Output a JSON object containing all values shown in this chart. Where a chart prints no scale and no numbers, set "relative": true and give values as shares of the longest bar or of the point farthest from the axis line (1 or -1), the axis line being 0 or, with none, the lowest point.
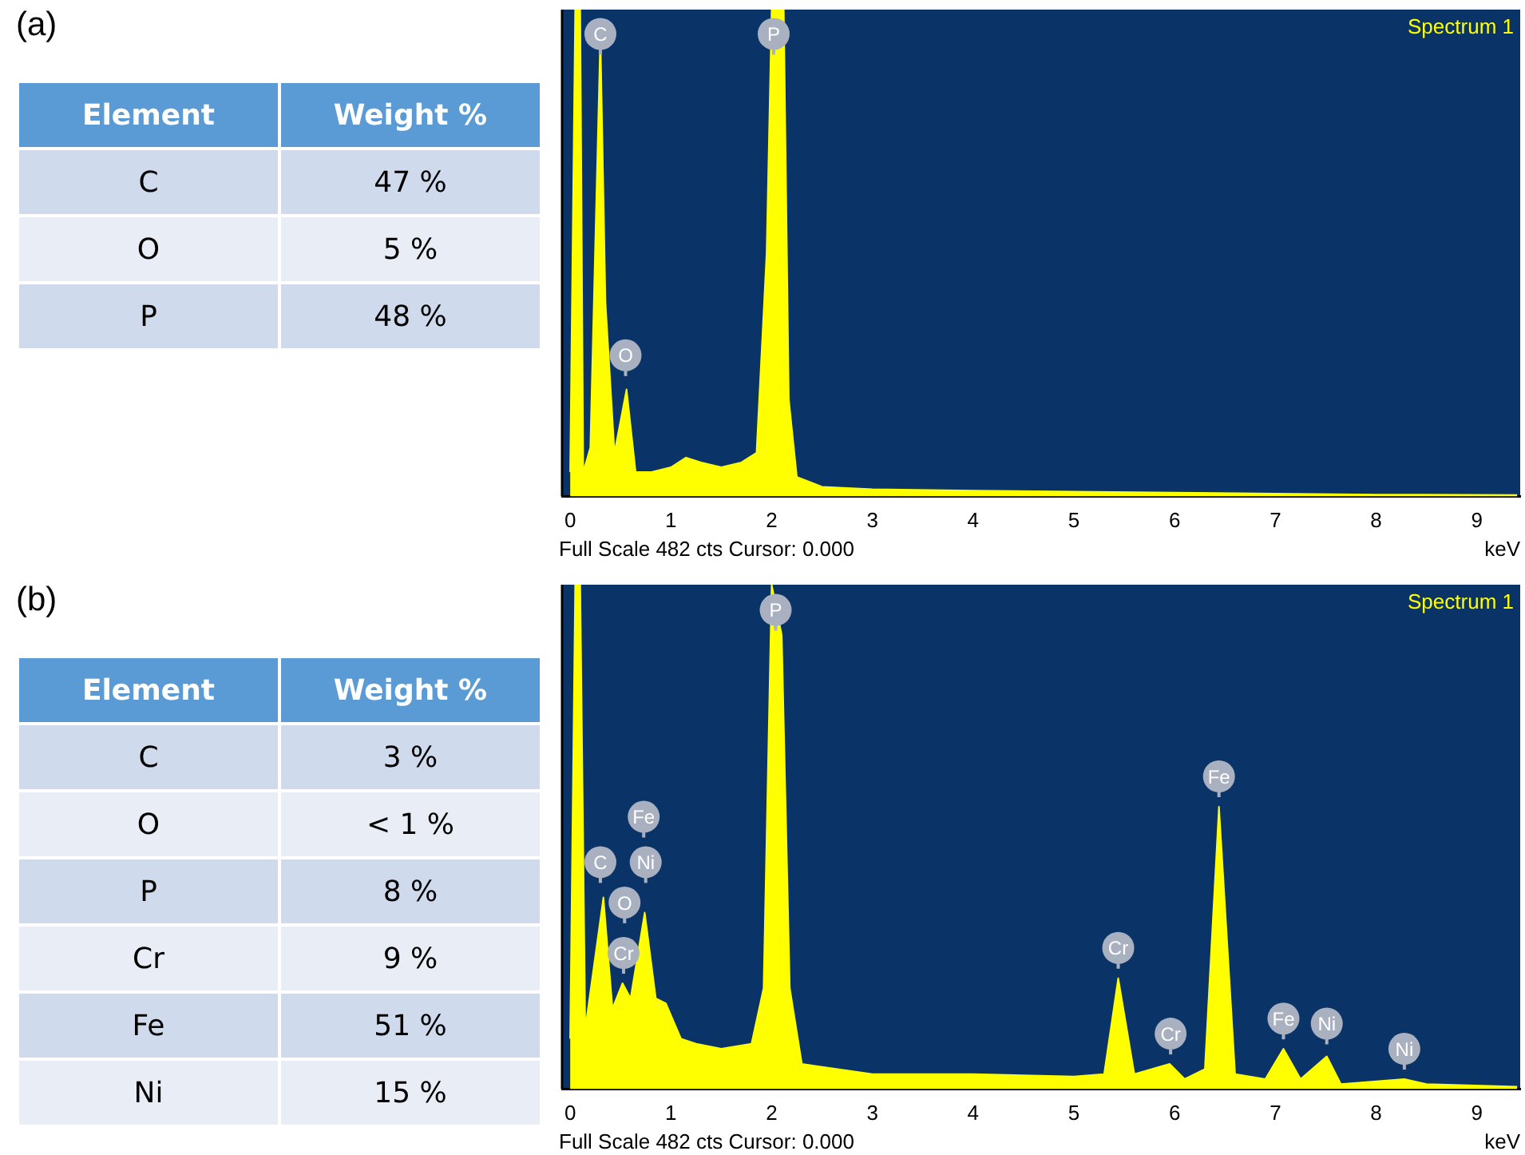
{
  "chart_data": [
    {
      "type": "other",
      "title": "(a)",
      "xlabel": "Element",
      "ylabel": "Weight %",
      "categories": [
        "C",
        "O",
        "P"
      ],
      "value_labels": [
        "47 %",
        "5 %",
        "48 %"
      ]
    },
    {
      "type": "area",
      "relative": true,
      "xlabel": "keV",
      "xlim": [
        -0.08,
        9.43
      ],
      "xticks": [
        0,
        1,
        2,
        3,
        4,
        5,
        6,
        7,
        8,
        9
      ],
      "x": [
        0,
        0.05,
        0.1,
        0.13,
        0.2,
        0.3,
        0.35,
        0.44,
        0.56,
        0.65,
        0.8,
        1.0,
        1.15,
        1.3,
        1.5,
        1.7,
        1.85,
        1.95,
        2.0,
        2.05,
        2.12,
        2.17,
        2.25,
        2.5,
        3,
        4,
        5,
        6,
        7,
        8,
        9.4
      ],
      "series": [
        {
          "color": "#ffff00",
          "values": [
            0.05,
            1,
            1,
            0.05,
            0.1,
            0.95,
            0.4,
            0.09,
            0.22,
            0.05,
            0.05,
            0.06,
            0.08,
            0.07,
            0.06,
            0.07,
            0.09,
            0.5,
            1,
            1,
            1,
            0.2,
            0.04,
            0.02,
            0.015,
            0.012,
            0.01,
            0.008,
            0.006,
            0.004,
            0.003
          ]
        }
      ],
      "annotations": [
        "Spectrum 1",
        "Full Scale 482 cts Cursor: 0.000",
        {
          "text": "C",
          "x": 0.3,
          "y": 0.95
        },
        {
          "text": "P",
          "x": 2.02,
          "y": 0.95
        },
        {
          "text": "O",
          "x": 0.55,
          "y": 0.29
        }
      ]
    },
    {
      "type": "other",
      "title": "(b)",
      "xlabel": "Element",
      "ylabel": "Weight %",
      "categories": [
        "C",
        "O",
        "P",
        "Cr",
        "Fe",
        "Ni"
      ],
      "value_labels": [
        "3 %",
        "< 1 %",
        "8 %",
        "9 %",
        "51 %",
        "15 %"
      ]
    },
    {
      "type": "area",
      "relative": true,
      "xlabel": "keV",
      "xlim": [
        -0.08,
        9.43
      ],
      "xticks": [
        0,
        1,
        2,
        3,
        4,
        5,
        6,
        7,
        8,
        9
      ],
      "x": [
        0,
        0.05,
        0.1,
        0.15,
        0.33,
        0.42,
        0.52,
        0.6,
        0.74,
        0.85,
        0.95,
        1.1,
        1.25,
        1.5,
        1.8,
        1.92,
        2.0,
        2.1,
        2.18,
        2.3,
        3,
        4,
        5,
        5.3,
        5.44,
        5.6,
        5.95,
        6.1,
        6.3,
        6.44,
        6.6,
        6.9,
        7.08,
        7.25,
        7.51,
        7.65,
        8.28,
        8.5,
        9.4
      ],
      "series": [
        {
          "color": "#ffff00",
          "values": [
            0.1,
            1,
            1,
            0.12,
            0.38,
            0.16,
            0.21,
            0.18,
            0.35,
            0.18,
            0.17,
            0.1,
            0.09,
            0.08,
            0.09,
            0.2,
            1,
            0.9,
            0.2,
            0.05,
            0.03,
            0.03,
            0.025,
            0.03,
            0.22,
            0.03,
            0.05,
            0.02,
            0.04,
            0.56,
            0.03,
            0.02,
            0.08,
            0.02,
            0.065,
            0.01,
            0.02,
            0.01,
            0.005
          ]
        }
      ],
      "annotations": [
        "Spectrum 1",
        "Full Scale 482 cts Cursor: 0.000",
        {
          "text": "P",
          "x": 2.04,
          "y": 0.95
        },
        {
          "text": "C",
          "x": 0.3,
          "y": 0.45
        },
        {
          "text": "Fe",
          "x": 0.73,
          "y": 0.54
        },
        {
          "text": "Ni",
          "x": 0.75,
          "y": 0.45
        },
        {
          "text": "O",
          "x": 0.54,
          "y": 0.37
        },
        {
          "text": "Cr",
          "x": 0.53,
          "y": 0.27
        },
        {
          "text": "Cr",
          "x": 5.44,
          "y": 0.28
        },
        {
          "text": "Cr",
          "x": 5.96,
          "y": 0.11
        },
        {
          "text": "Fe",
          "x": 6.44,
          "y": 0.62
        },
        {
          "text": "Fe",
          "x": 7.08,
          "y": 0.14
        },
        {
          "text": "Ni",
          "x": 7.51,
          "y": 0.13
        },
        {
          "text": "Ni",
          "x": 8.28,
          "y": 0.08
        }
      ]
    }
  ]
}
